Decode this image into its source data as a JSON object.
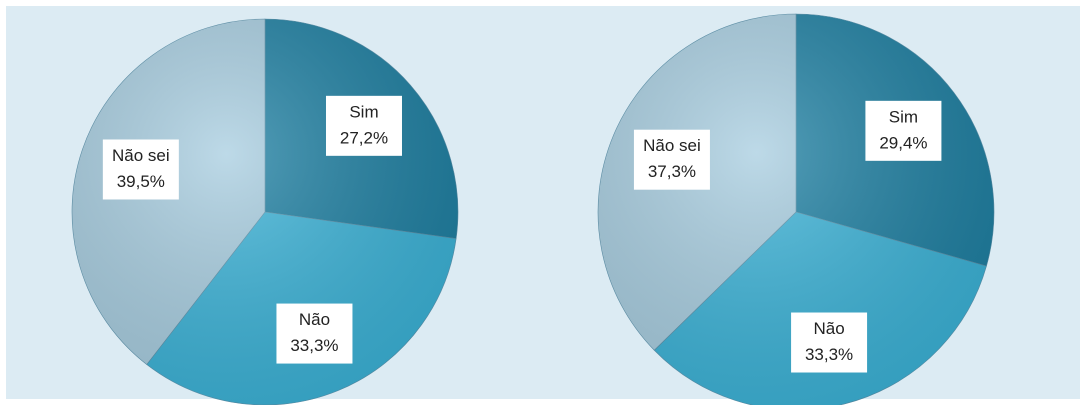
{
  "chart_data": [
    {
      "type": "pie",
      "categories": [
        "Sim",
        "Não",
        "Não sei"
      ],
      "values": [
        27.2,
        33.3,
        39.5
      ],
      "value_labels": [
        "27,2%",
        "33,3%",
        "39,5%"
      ],
      "colors": [
        "#1c7fa2",
        "#3ab3d8",
        "#a7cde0"
      ]
    },
    {
      "type": "pie",
      "categories": [
        "Sim",
        "Não",
        "Não sei"
      ],
      "values": [
        29.4,
        33.3,
        37.3
      ],
      "value_labels": [
        "29,4%",
        "33,3%",
        "37,3%"
      ],
      "colors": [
        "#1c7fa2",
        "#3ab3d8",
        "#a7cde0"
      ]
    }
  ]
}
